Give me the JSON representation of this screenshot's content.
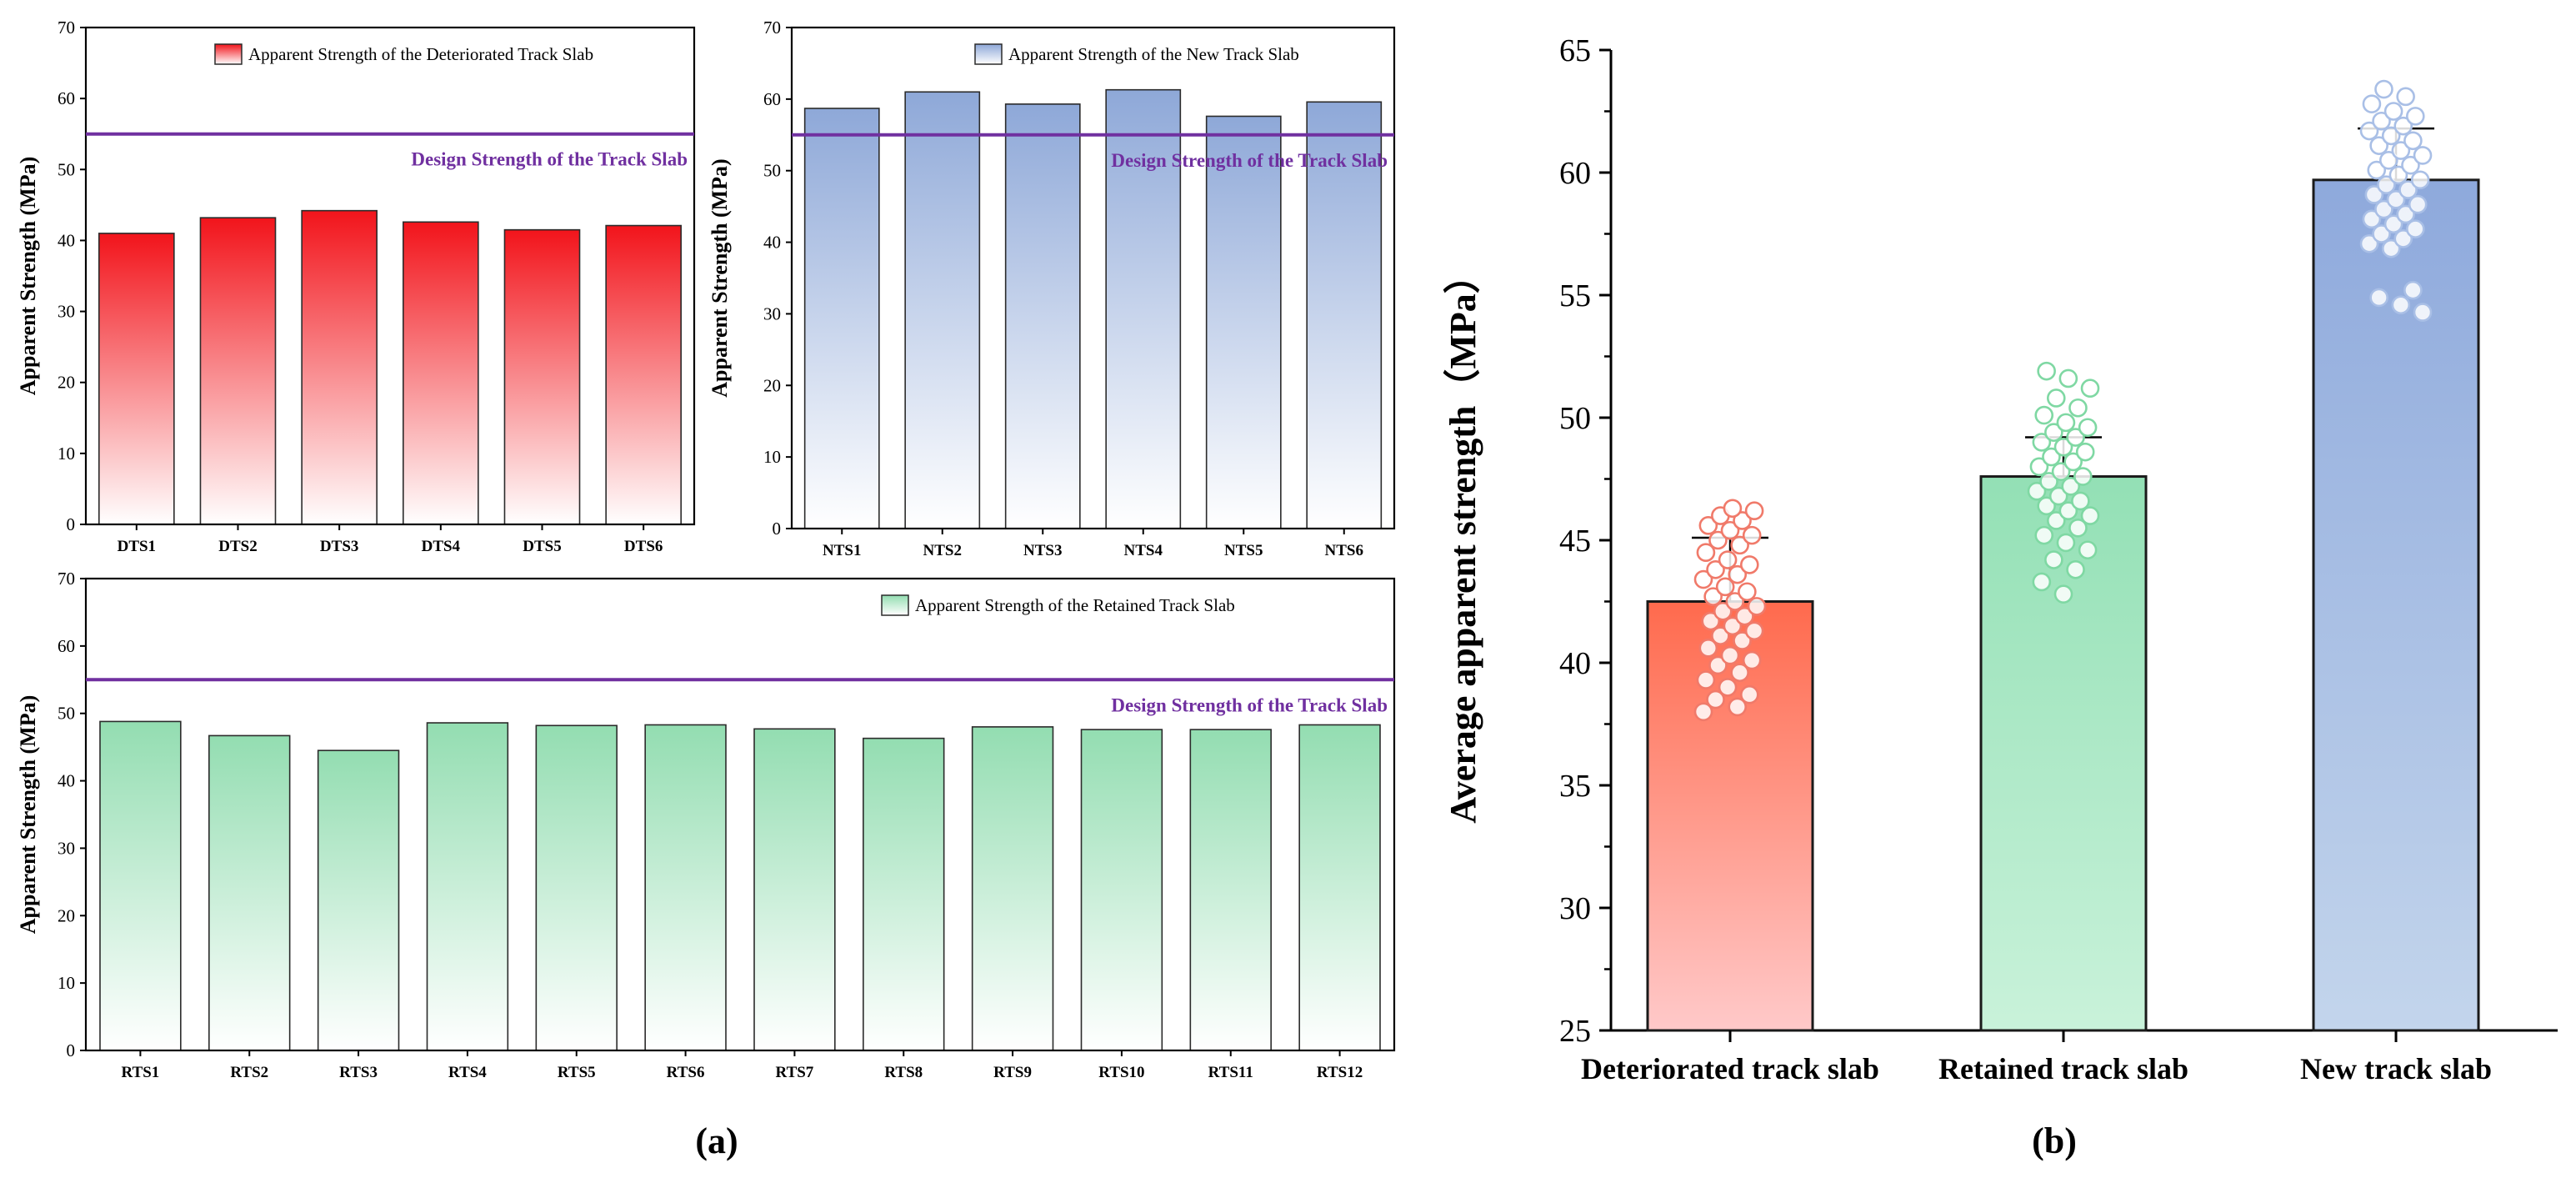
{
  "colors": {
    "design_line": "#7030a0",
    "red_top": "#f2141b",
    "red_bottom": "#ffffff",
    "blue_top": "#8ea8d8",
    "blue_bottom": "#ffffff",
    "green_top": "#93ddb1",
    "green_bottom": "#ffffff",
    "b_red_top": "#ff6a4d",
    "b_red_bottom": "#ffc9c9",
    "b_green_top": "#93e0b5",
    "b_green_bottom": "#c9f2da",
    "b_blue_top": "#8ea9dc",
    "b_blue_bottom": "#c3d5ec",
    "dot_red": "#f07a6a",
    "dot_green": "#7fd8a3",
    "dot_blue": "#a9bfe6"
  },
  "panel_labels": {
    "a": "(a)",
    "b": "(b)"
  },
  "chart_data": [
    {
      "id": "deteriorated",
      "type": "bar",
      "title": "",
      "legend": "Apparent Strength of the Deteriorated Track Slab",
      "legend_position": "top-right",
      "xlabel": "",
      "ylabel": "Apparent Strength (MPa)",
      "ylim": [
        0,
        70
      ],
      "yticks": [
        0,
        10,
        20,
        30,
        40,
        50,
        60,
        70
      ],
      "categories": [
        "DTS1",
        "DTS2",
        "DTS3",
        "DTS4",
        "DTS5",
        "DTS6"
      ],
      "values": [
        41.0,
        43.2,
        44.2,
        42.6,
        41.5,
        42.1
      ],
      "design_strength": 55,
      "design_label": "Design Strength of the Track Slab"
    },
    {
      "id": "new",
      "type": "bar",
      "title": "",
      "legend": "Apparent Strength of the New Track Slab",
      "legend_position": "top-right",
      "xlabel": "",
      "ylabel": "Apparent Strength (MPa)",
      "ylim": [
        0,
        70
      ],
      "yticks": [
        0,
        10,
        20,
        30,
        40,
        50,
        60,
        70
      ],
      "categories": [
        "NTS1",
        "NTS2",
        "NTS3",
        "NTS4",
        "NTS5",
        "NTS6"
      ],
      "values": [
        58.7,
        61.0,
        59.3,
        61.3,
        57.6,
        59.6
      ],
      "design_strength": 55,
      "design_label": "Design Strength of the Track Slab"
    },
    {
      "id": "retained",
      "type": "bar",
      "title": "",
      "legend": "Apparent Strength of the Retained Track Slab",
      "legend_position": "top-right",
      "xlabel": "",
      "ylabel": "Apparent Strength (MPa)",
      "ylim": [
        0,
        70
      ],
      "yticks": [
        0,
        10,
        20,
        30,
        40,
        50,
        60,
        70
      ],
      "categories": [
        "RTS1",
        "RTS2",
        "RTS3",
        "RTS4",
        "RTS5",
        "RTS6",
        "RTS7",
        "RTS8",
        "RTS9",
        "RTS10",
        "RTS11",
        "RTS12"
      ],
      "values": [
        48.8,
        46.7,
        44.5,
        48.6,
        48.2,
        48.3,
        47.7,
        46.3,
        48.0,
        47.6,
        47.6,
        48.3
      ],
      "design_strength": 55,
      "design_label": "Design Strength of the Track Slab"
    },
    {
      "id": "average",
      "type": "bar",
      "title": "",
      "xlabel": "",
      "ylabel": "Average apparent strength（MPa）",
      "ylim": [
        25,
        65
      ],
      "yticks": [
        25,
        30,
        35,
        40,
        45,
        50,
        55,
        60,
        65
      ],
      "categories": [
        "Deteriorated track slab",
        "Retained track slab",
        "New track slab"
      ],
      "values": [
        42.5,
        47.6,
        59.7
      ],
      "error_upper": [
        45.1,
        49.2,
        61.8
      ],
      "points": [
        [
          38.0,
          38.2,
          38.5,
          38.7,
          39.0,
          39.3,
          39.6,
          39.9,
          40.1,
          40.3,
          40.6,
          40.9,
          41.1,
          41.3,
          41.5,
          41.7,
          41.9,
          42.1,
          42.3,
          42.5,
          42.7,
          42.9,
          43.1,
          43.4,
          43.6,
          43.8,
          44.0,
          44.2,
          44.5,
          44.8,
          45.0,
          45.2,
          45.4,
          45.6,
          45.8,
          46.0,
          46.2,
          46.3
        ],
        [
          42.8,
          43.3,
          43.8,
          44.2,
          44.6,
          44.9,
          45.2,
          45.5,
          45.8,
          46.0,
          46.2,
          46.4,
          46.6,
          46.8,
          47.0,
          47.2,
          47.4,
          47.6,
          47.8,
          48.0,
          48.2,
          48.4,
          48.6,
          48.8,
          49.0,
          49.2,
          49.4,
          49.6,
          49.8,
          50.1,
          50.4,
          50.8,
          51.2,
          51.6,
          51.9
        ],
        [
          54.3,
          54.6,
          54.9,
          55.2,
          56.9,
          57.1,
          57.3,
          57.5,
          57.7,
          57.9,
          58.1,
          58.3,
          58.5,
          58.7,
          58.9,
          59.1,
          59.3,
          59.5,
          59.7,
          59.9,
          60.1,
          60.3,
          60.5,
          60.7,
          60.9,
          61.1,
          61.3,
          61.5,
          61.7,
          61.9,
          62.1,
          62.3,
          62.5,
          62.8,
          63.1,
          63.4
        ]
      ]
    }
  ]
}
